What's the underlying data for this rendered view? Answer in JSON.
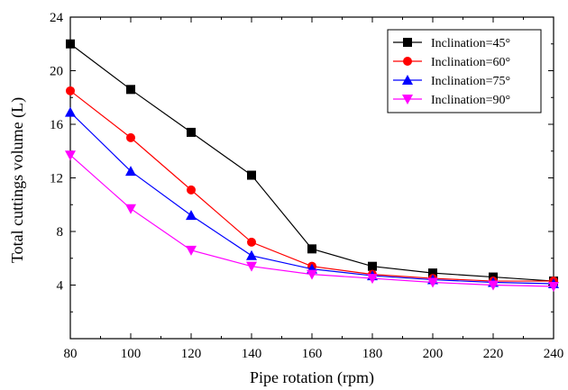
{
  "chart_data": {
    "type": "line",
    "title": "",
    "xlabel": "Pipe rotation (rpm)",
    "ylabel": "Total cuttings volume (L)",
    "xlim": [
      80,
      240
    ],
    "ylim": [
      0,
      24
    ],
    "x_ticks": [
      80,
      100,
      120,
      140,
      160,
      180,
      200,
      220,
      240
    ],
    "y_ticks": [
      4,
      8,
      12,
      16,
      20,
      24
    ],
    "x": [
      80,
      100,
      120,
      140,
      160,
      180,
      200,
      220,
      240
    ],
    "grid": false,
    "legend_position": "top-right",
    "series": [
      {
        "name": "Inclination=45°",
        "color": "#000000",
        "marker": "square",
        "values": [
          22.0,
          18.6,
          15.4,
          12.2,
          6.7,
          5.4,
          4.9,
          4.6,
          4.3
        ]
      },
      {
        "name": "Inclination=60°",
        "color": "#ff0000",
        "marker": "circle",
        "values": [
          18.5,
          15.0,
          11.1,
          7.2,
          5.4,
          4.8,
          4.5,
          4.3,
          4.3
        ]
      },
      {
        "name": "Inclination=75°",
        "color": "#0000ff",
        "marker": "triangle-up",
        "values": [
          16.9,
          12.5,
          9.2,
          6.2,
          5.2,
          4.7,
          4.4,
          4.2,
          4.1
        ]
      },
      {
        "name": "Inclination=90°",
        "color": "#ff00ff",
        "marker": "triangle-down",
        "values": [
          13.7,
          9.7,
          6.6,
          5.4,
          4.8,
          4.5,
          4.2,
          4.0,
          3.9
        ]
      }
    ]
  }
}
